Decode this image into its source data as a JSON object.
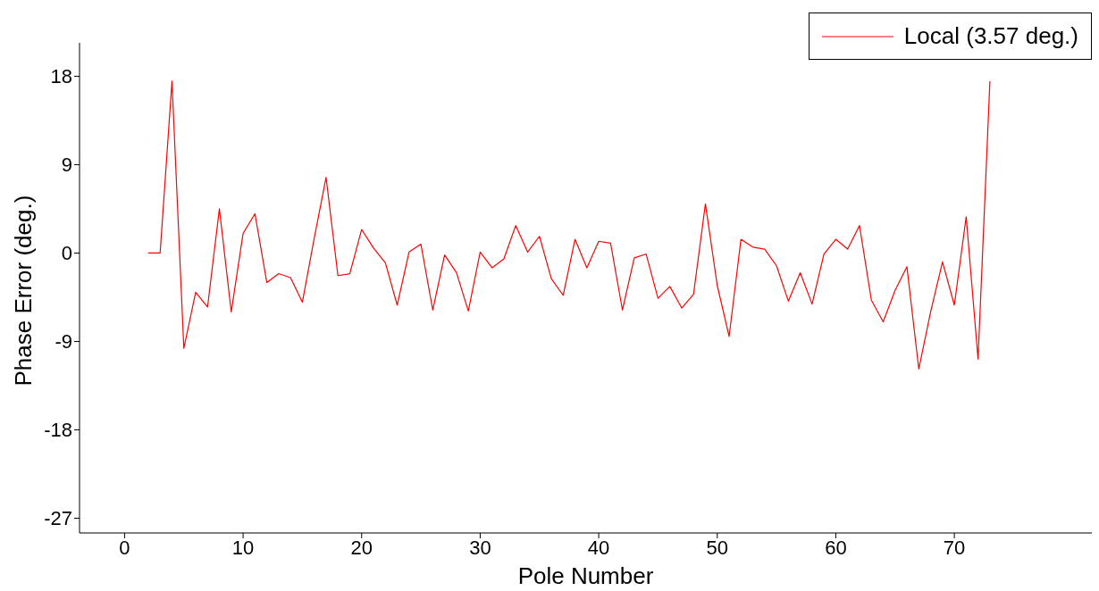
{
  "chart_data": {
    "type": "line",
    "xlabel": "Pole Number",
    "ylabel": "Phase Error (deg.)",
    "x": [
      2,
      3,
      4,
      5,
      6,
      7,
      8,
      9,
      10,
      11,
      12,
      13,
      14,
      15,
      16,
      17,
      18,
      19,
      20,
      21,
      22,
      23,
      24,
      25,
      26,
      27,
      28,
      29,
      30,
      31,
      32,
      33,
      34,
      35,
      36,
      37,
      38,
      39,
      40,
      41,
      42,
      43,
      44,
      45,
      46,
      47,
      48,
      49,
      50,
      51,
      52,
      53,
      54,
      55,
      56,
      57,
      58,
      59,
      60,
      61,
      62,
      63,
      64,
      65,
      66,
      67,
      68,
      69,
      70,
      71,
      72,
      73
    ],
    "series": [
      {
        "name": "Local (3.57 deg.)",
        "color": "#ff0000",
        "values": [
          0,
          0,
          17.5,
          -9.7,
          -4,
          -5.5,
          4.5,
          -6,
          2,
          4,
          -3,
          -2.1,
          -2.5,
          -5,
          1.5,
          7.7,
          -2.3,
          -2.1,
          2.4,
          0.5,
          -1,
          -5.3,
          0.1,
          0.9,
          -5.8,
          -0.2,
          -2,
          -5.9,
          0.1,
          -1.5,
          -0.6,
          2.8,
          0.1,
          1.7,
          -2.6,
          -4.3,
          1.4,
          -1.5,
          1.2,
          1,
          -5.8,
          -0.5,
          -0.1,
          -4.6,
          -3.4,
          -5.6,
          -4.2,
          5,
          -3.3,
          -8.5,
          1.4,
          0.6,
          0.4,
          -1.3,
          -4.9,
          -2,
          -5.2,
          -0.1,
          1.4,
          0.4,
          2.8,
          -4.8,
          -7,
          -3.8,
          -1.4,
          -11.8,
          -6,
          -0.9,
          -5.3,
          3.7,
          -10.8,
          17.5
        ]
      }
    ],
    "xlim": [
      -3.8,
      81.6
    ],
    "ylim": [
      -28.5,
      21.4
    ],
    "xticks": [
      0,
      10,
      20,
      30,
      40,
      50,
      60,
      70
    ],
    "yticks": [
      -27,
      -18,
      -9,
      0,
      9,
      18
    ],
    "legend": "top right",
    "marker": "none",
    "line_style": "solid",
    "grid": false
  }
}
